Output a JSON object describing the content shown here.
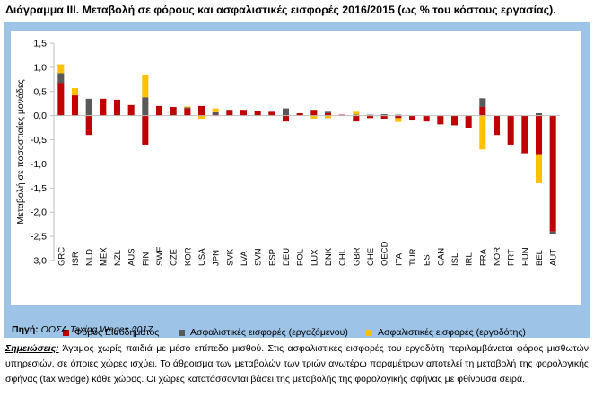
{
  "title": "Διάγραμμα ΙΙΙ. Μεταβολή σε φόρους και ασφαλιστικές εισφορές 2016/2015 (ως % του κόστους εργασίας).",
  "source": {
    "label": "Πηγή:",
    "text": "ΟΟΣΑ Taxing Wages 2017."
  },
  "notes": {
    "label": "Σημειώσεις:",
    "text": " Άγαμος χωρίς παιδιά με μέσο επίπεδο μισθού. Στις ασφαλιστικές εισφορές του εργοδότη περιλαμβάνεται φόρος μισθωτών υπηρεσιών, σε όποιες χώρες ισχύει. Το άθροισμα των μεταβολών των τριών ανωτέρω παραμέτρων αποτελεί τη μεταβολή της φορολογικής σφήνας (tax wedge) κάθε χώρας. Οι χώρες κατατάσσονται βάσει της μεταβολής της φορολογικής σφήνας με φθίνουσα σειρά."
  },
  "colors": {
    "figure_bg": "#9dc3e6",
    "series_1": "#c00000",
    "series_2": "#595959",
    "series_3": "#ffc000"
  },
  "chart_data": {
    "type": "bar",
    "stacked": true,
    "title": "",
    "xlabel": "",
    "ylabel": "Μεταβολή σε ποσοστιαίες μονάδες",
    "ylim": [
      -3.0,
      1.5
    ],
    "yticks": [
      1.5,
      1.0,
      0.5,
      0.0,
      -0.5,
      -1.0,
      -1.5,
      -2.0,
      -2.5,
      -3.0
    ],
    "ytick_labels": [
      "1,5",
      "1,0",
      "0,5",
      "0,0",
      "-0,5",
      "-1,0",
      "-1,5",
      "-2,0",
      "-2,5",
      "-3,0"
    ],
    "legend_position": "bottom",
    "grid": false,
    "categories": [
      "GRC",
      "ISR",
      "NLD",
      "MEX",
      "NZL",
      "AUS",
      "FIN",
      "SWE",
      "CZE",
      "KOR",
      "USA",
      "JPN",
      "SVK",
      "LVA",
      "SVN",
      "ESP",
      "DEU",
      "POL",
      "LUX",
      "DNK",
      "CHL",
      "GBR",
      "CHE",
      "OECD",
      "ITA",
      "TUR",
      "EST",
      "CAN",
      "ISL",
      "IRL",
      "FRA",
      "NOR",
      "PRT",
      "HUN",
      "BEL",
      "AUT"
    ],
    "series": [
      {
        "name": "Φόρος Εισοδήματος",
        "color": "#c00000",
        "values": [
          0.68,
          0.42,
          -0.4,
          0.35,
          0.33,
          0.22,
          -0.6,
          0.2,
          0.18,
          0.15,
          0.2,
          0.02,
          0.12,
          0.12,
          0.1,
          0.08,
          -0.12,
          0.05,
          0.12,
          0.05,
          0.02,
          -0.12,
          -0.05,
          -0.08,
          -0.05,
          -0.1,
          -0.12,
          -0.18,
          -0.2,
          -0.25,
          0.18,
          -0.4,
          -0.6,
          -0.78,
          -0.8,
          -2.4
        ]
      },
      {
        "name": "Ασφαλιστικές εισφορές (εργαζόμενου)",
        "color": "#595959",
        "values": [
          0.2,
          0.0,
          0.35,
          0.0,
          0.0,
          0.0,
          0.38,
          0.0,
          0.0,
          0.02,
          0.0,
          0.05,
          0.0,
          0.0,
          0.0,
          0.0,
          0.15,
          0.0,
          0.0,
          0.03,
          0.0,
          0.02,
          0.02,
          0.03,
          0.02,
          0.0,
          0.0,
          0.0,
          0.0,
          0.0,
          0.18,
          0.0,
          0.0,
          0.0,
          0.05,
          -0.05
        ]
      },
      {
        "name": "Ασφαλιστικές εισφορές (εργοδότης)",
        "color": "#ffc000",
        "values": [
          0.18,
          0.15,
          0.0,
          0.0,
          0.0,
          0.0,
          0.45,
          0.0,
          0.0,
          0.02,
          -0.06,
          0.08,
          0.0,
          0.0,
          0.0,
          0.0,
          0.0,
          0.0,
          -0.06,
          -0.05,
          0.0,
          0.06,
          0.0,
          0.0,
          -0.08,
          0.0,
          0.0,
          0.0,
          0.0,
          0.0,
          -0.7,
          0.0,
          0.0,
          0.0,
          -0.6,
          0.0
        ]
      }
    ]
  }
}
